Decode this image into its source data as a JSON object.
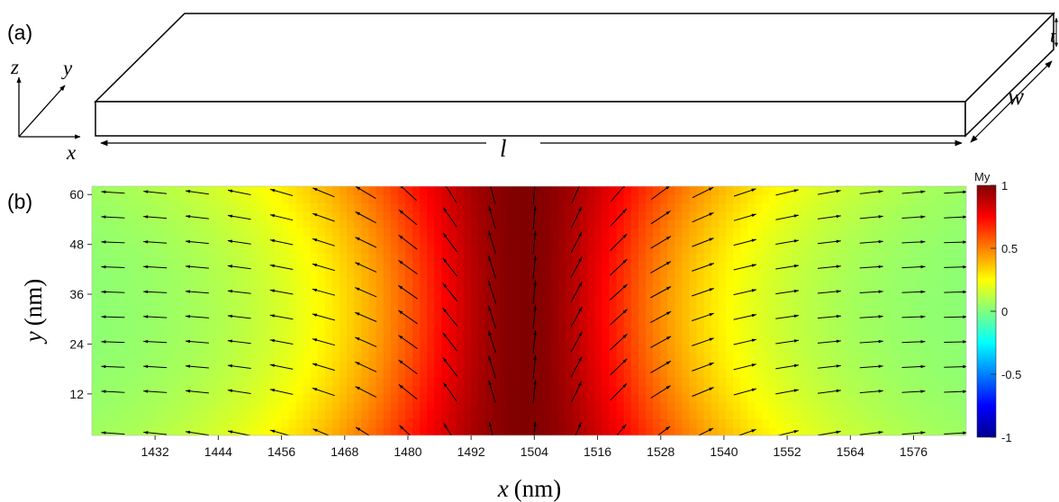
{
  "panel_a": {
    "label": "(a)",
    "coordinate_axes": [
      "z",
      "y",
      "x"
    ],
    "dimension_labels": [
      "l",
      "w",
      "t"
    ]
  },
  "panel_b": {
    "label": "(b)"
  },
  "chart_data": {
    "type": "heatmap",
    "title": "",
    "xlabel_var": "x",
    "xlabel_unit": "(nm)",
    "ylabel_var": "y",
    "ylabel_unit": "(nm)",
    "xlim": [
      1420,
      1586
    ],
    "ylim": [
      2,
      62
    ],
    "x_ticks": [
      1432,
      1444,
      1456,
      1468,
      1480,
      1492,
      1504,
      1516,
      1528,
      1540,
      1552,
      1564,
      1576
    ],
    "y_ticks": [
      12,
      24,
      36,
      48,
      60
    ],
    "field": "My",
    "domain_wall_center_x": 1502,
    "domain_wall_width_nm": 22,
    "arrow_x": [
      1424,
      1432,
      1440,
      1448,
      1456,
      1464,
      1472,
      1480,
      1488,
      1496,
      1504,
      1512,
      1520,
      1528,
      1536,
      1544,
      1552,
      1560,
      1568,
      1576,
      1584
    ],
    "arrow_y": [
      2.5,
      12.5,
      18.5,
      24.5,
      30.5,
      36.5,
      42.5,
      48.5,
      54.5,
      60.5
    ],
    "colorbar": {
      "label": "My",
      "min": -1,
      "max": 1,
      "ticks": [
        "1",
        "0.5",
        "0",
        "-0.5",
        "-1"
      ],
      "colormap": [
        "#00008f",
        "#0000ff",
        "#0080ff",
        "#00ffff",
        "#80ff80",
        "#ffff00",
        "#ff8000",
        "#ff0000",
        "#800000"
      ]
    }
  }
}
